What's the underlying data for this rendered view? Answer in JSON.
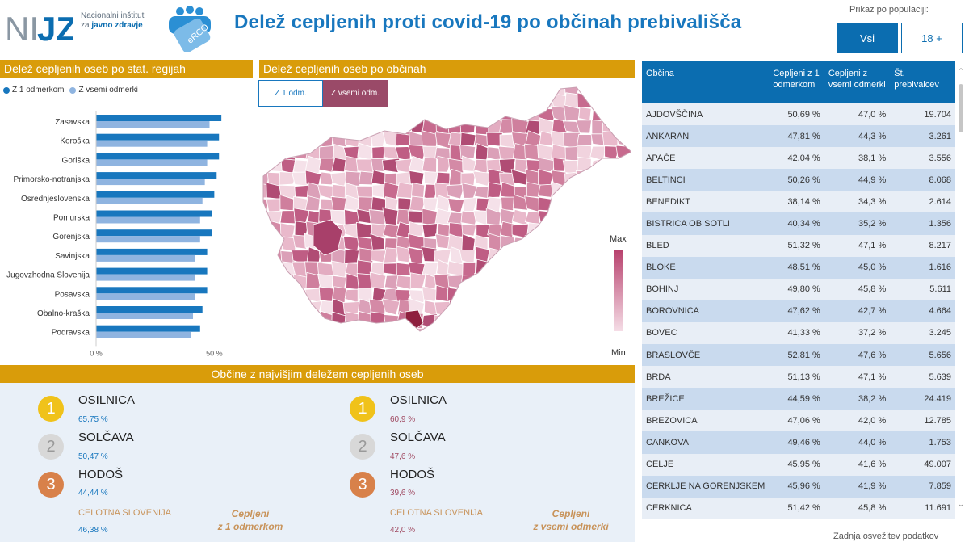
{
  "header": {
    "logo_text": "NIJZ",
    "logo_sub_line1": "Nacionalni inštitut",
    "logo_sub_line2_prefix": "za",
    "logo_sub_line2_bold": "javno zdravje",
    "erco_logo_text": "eRCO",
    "title": "Delež cepljenih proti covid-19 po občinah prebivališča",
    "population_label": "Prikaz po populaciji:",
    "pop_all": "Vsi",
    "pop_18": "18 +"
  },
  "regions_section": {
    "title": "Delež cepljenih oseb po stat. regijah",
    "legend_a": "Z 1 odmerkom",
    "legend_b": "Z vsemi odmerki",
    "color_a": "#1877be",
    "color_b": "#8fb4e0"
  },
  "chart_data": {
    "type": "bar",
    "orientation": "horizontal",
    "categories": [
      "Zasavska",
      "Koroška",
      "Goriška",
      "Primorsko-notranjska",
      "Osrednjeslovenska",
      "Pomurska",
      "Gorenjska",
      "Savinjska",
      "Jugovzhodna Slovenija",
      "Posavska",
      "Obalno-kraška",
      "Podravska"
    ],
    "series": [
      {
        "name": "Z 1 odmerkom",
        "values": [
          53,
          52,
          52,
          51,
          50,
          49,
          49,
          47,
          47,
          47,
          45,
          44
        ]
      },
      {
        "name": "Z vsemi odmerki",
        "values": [
          48,
          47,
          47,
          46,
          45,
          44,
          44,
          42,
          42,
          42,
          41,
          40
        ]
      }
    ],
    "xlim": [
      0,
      60
    ],
    "tick_labels": [
      "0 %",
      "50 %"
    ],
    "grid": false,
    "legend": "top-left"
  },
  "map_section": {
    "title": "Delež cepljenih oseb po občinah",
    "toggle_1": "Z 1 odm.",
    "toggle_2": "Z vsemi odm.",
    "scale_max": "Max",
    "scale_min": "Min"
  },
  "top_section": {
    "title": "Občine z najvišjim deležem cepljenih oseb",
    "left": [
      {
        "rank": "1",
        "name": "OSILNICA",
        "value": "65,75 %"
      },
      {
        "rank": "2",
        "name": "SOLČAVA",
        "value": "50,47 %"
      },
      {
        "rank": "3",
        "name": "HODOŠ",
        "value": "44,44 %"
      }
    ],
    "left_total_label": "CELOTNA SLOVENIJA",
    "left_total_value": "46,38 %",
    "left_category_line1": "Cepljeni",
    "left_category_line2": "z 1 odmerkom",
    "right": [
      {
        "rank": "1",
        "name": "OSILNICA",
        "value": "60,9 %"
      },
      {
        "rank": "2",
        "name": "SOLČAVA",
        "value": "47,6 %"
      },
      {
        "rank": "3",
        "name": "HODOŠ",
        "value": "39,6 %"
      }
    ],
    "right_total_label": "CELOTNA SLOVENIJA",
    "right_total_value": "42,0 %",
    "right_category_line1": "Cepljeni",
    "right_category_line2": "z vsemi odmerki"
  },
  "table": {
    "headers": [
      "Občina",
      "Cepljeni z 1 odmerkom",
      "Cepljeni z vsemi odmerki",
      "Št. prebivalcev"
    ],
    "rows": [
      [
        "AJDOVŠČINA",
        "50,69 %",
        "47,0 %",
        "19.704"
      ],
      [
        "ANKARAN",
        "47,81 %",
        "44,3 %",
        "3.261"
      ],
      [
        "APAČE",
        "42,04 %",
        "38,1 %",
        "3.556"
      ],
      [
        "BELTINCI",
        "50,26 %",
        "44,9 %",
        "8.068"
      ],
      [
        "BENEDIKT",
        "38,14 %",
        "34,3 %",
        "2.614"
      ],
      [
        "BISTRICA OB SOTLI",
        "40,34 %",
        "35,2 %",
        "1.356"
      ],
      [
        "BLED",
        "51,32 %",
        "47,1 %",
        "8.217"
      ],
      [
        "BLOKE",
        "48,51 %",
        "45,0 %",
        "1.616"
      ],
      [
        "BOHINJ",
        "49,80 %",
        "45,8 %",
        "5.611"
      ],
      [
        "BOROVNICA",
        "47,62 %",
        "42,7 %",
        "4.664"
      ],
      [
        "BOVEC",
        "41,33 %",
        "37,2 %",
        "3.245"
      ],
      [
        "BRASLOVČE",
        "52,81 %",
        "47,6 %",
        "5.656"
      ],
      [
        "BRDA",
        "51,13 %",
        "47,1 %",
        "5.639"
      ],
      [
        "BREŽICE",
        "44,59 %",
        "38,2 %",
        "24.419"
      ],
      [
        "BREZOVICA",
        "47,06 %",
        "42,0 %",
        "12.785"
      ],
      [
        "CANKOVA",
        "49,46 %",
        "44,0 %",
        "1.753"
      ],
      [
        "CELJE",
        "45,95 %",
        "41,6 %",
        "49.007"
      ],
      [
        "CERKLJE NA GORENJSKEM",
        "45,96 %",
        "41,9 %",
        "7.859"
      ],
      [
        "CERKNICA",
        "51,42 %",
        "45,8 %",
        "11.691"
      ]
    ]
  },
  "footer_note": "Zadnja osvežitev podatkov"
}
